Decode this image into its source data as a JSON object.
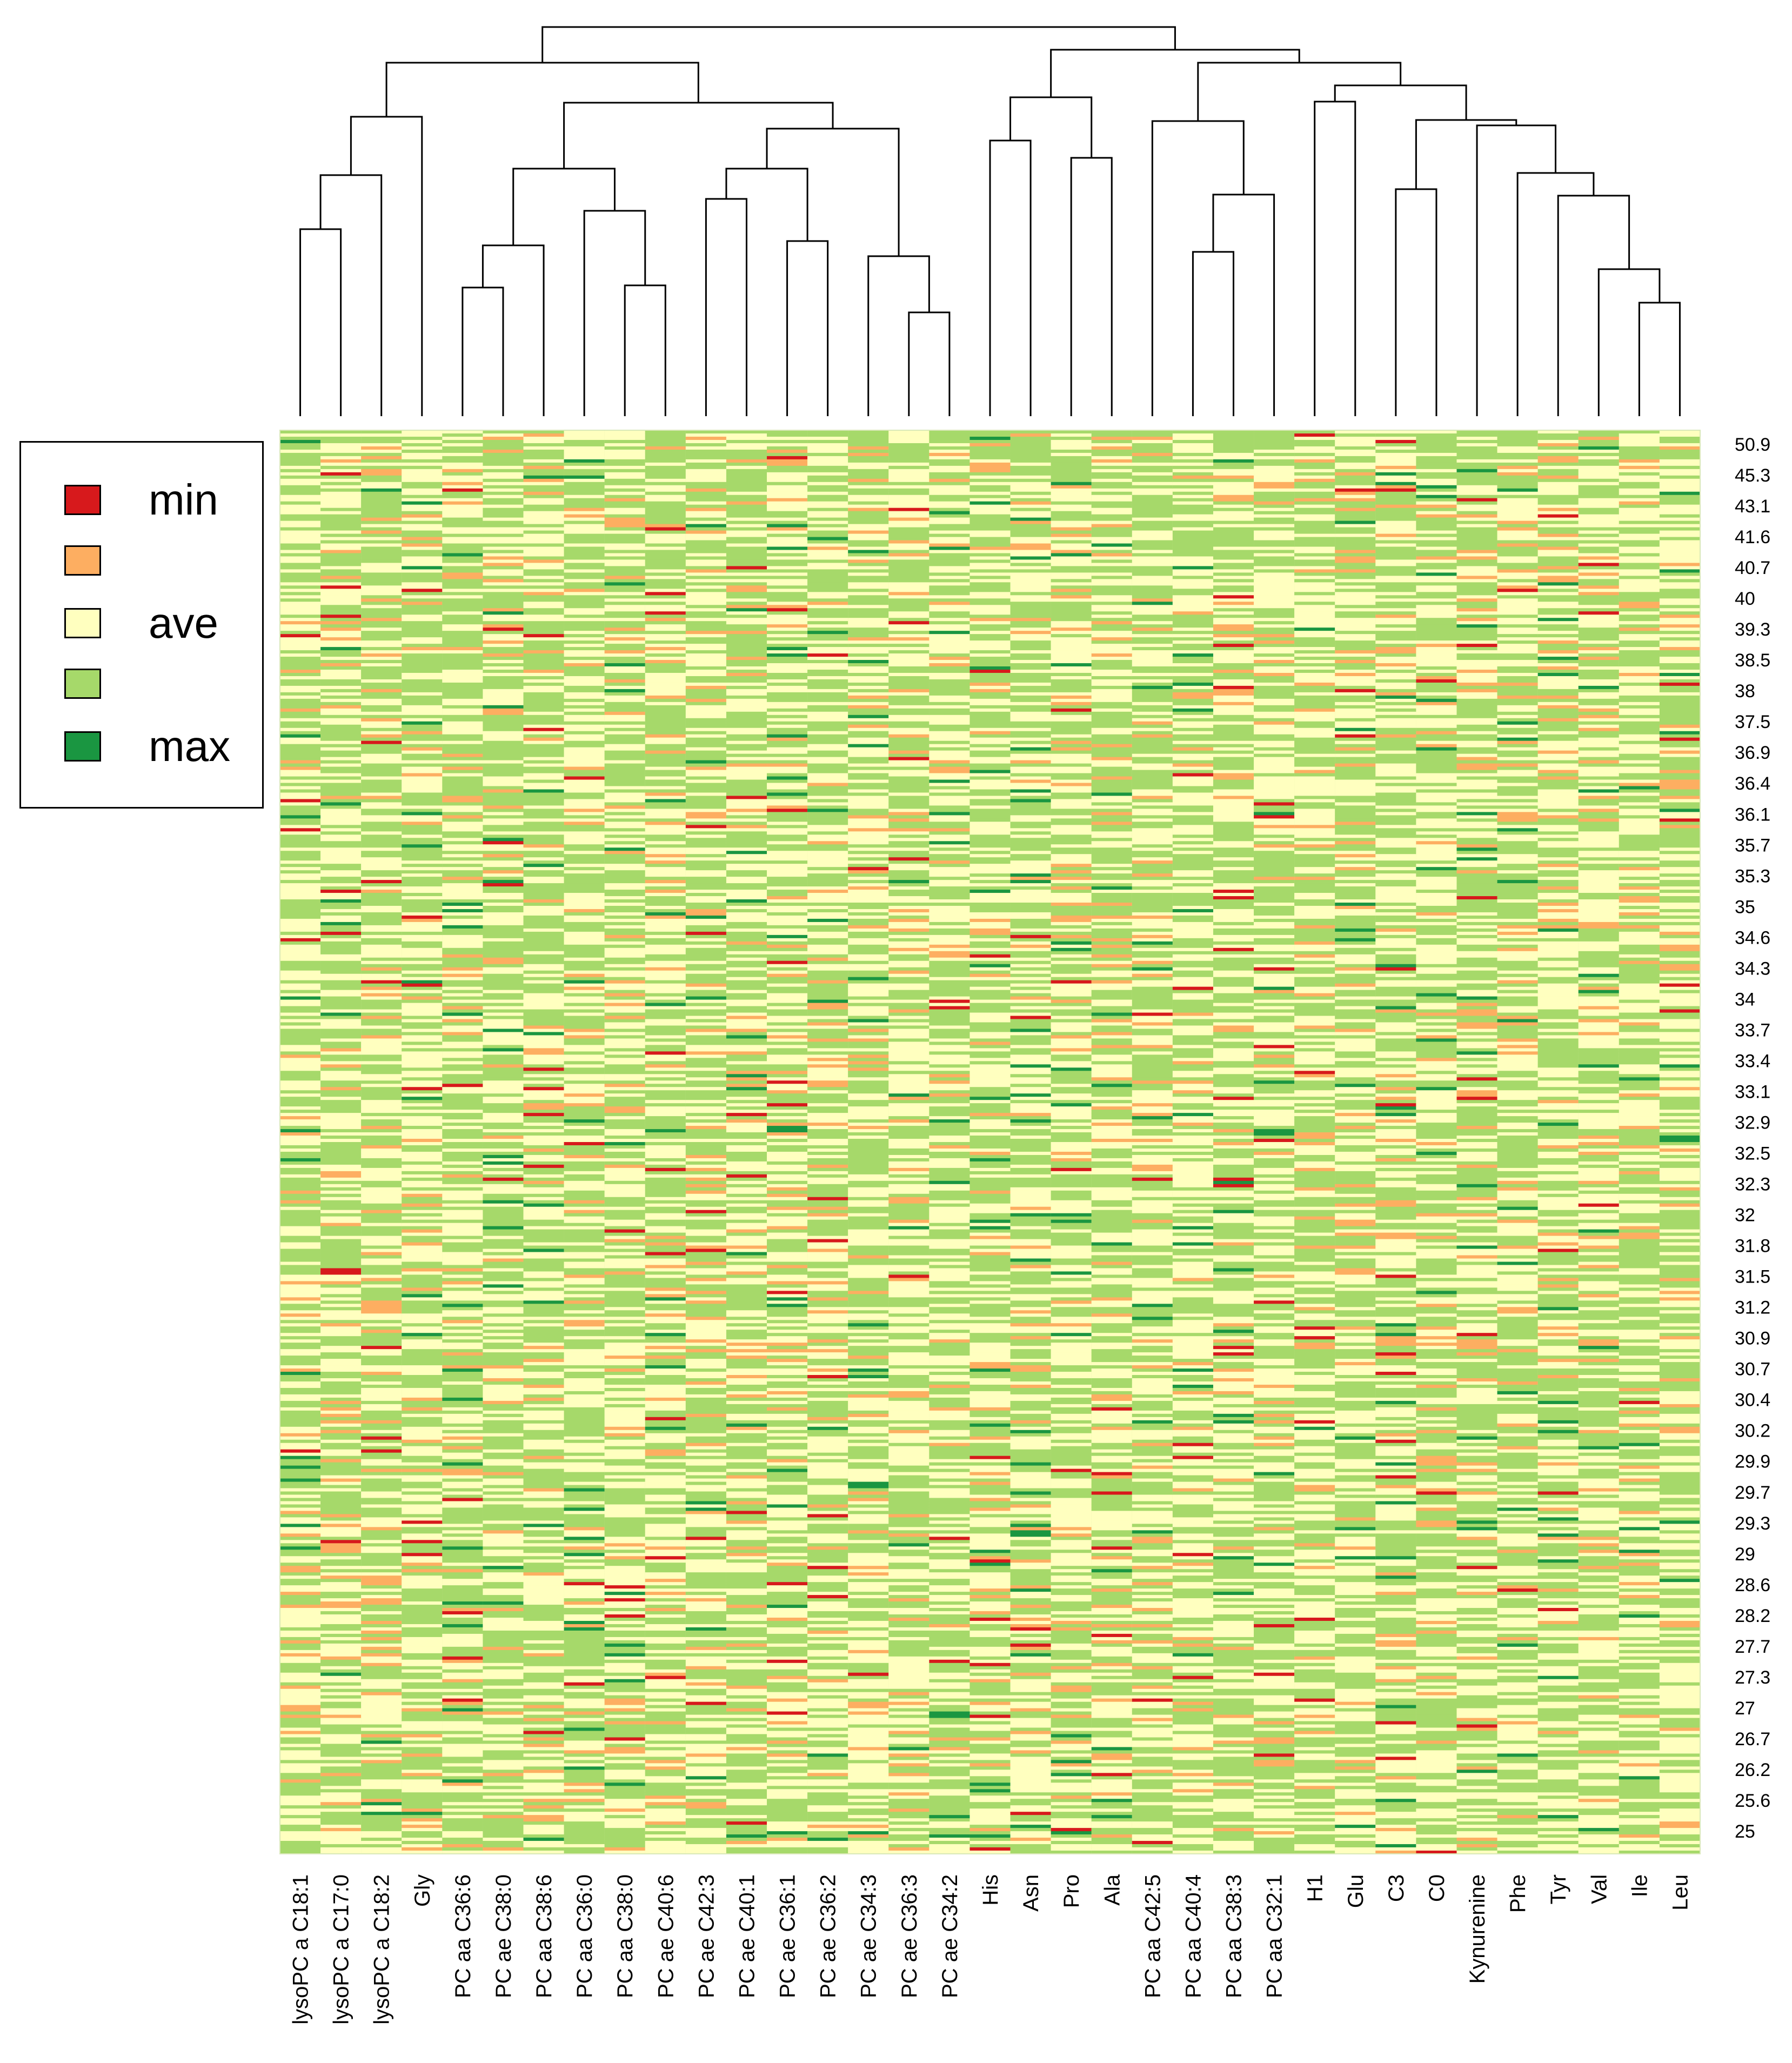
{
  "chart_data": {
    "type": "heatmap",
    "title": "",
    "columns": [
      "lysoPC a C18:1",
      "lysoPC a C17:0",
      "lysoPC a C18:2",
      "Gly",
      "PC aa C36:6",
      "PC ae C38:0",
      "PC aa C38:6",
      "PC aa C36:0",
      "PC aa C38:0",
      "PC ae C40:6",
      "PC ae C42:3",
      "PC ae C40:1",
      "PC ae C36:1",
      "PC ae C36:2",
      "PC ae C34:3",
      "PC ae C36:3",
      "PC ae C34:2",
      "His",
      "Asn",
      "Pro",
      "Ala",
      "PC aa C42:5",
      "PC aa C40:4",
      "PC aa C38:3",
      "PC aa C32:1",
      "H1",
      "Glu",
      "C3",
      "C0",
      "Kynurenine",
      "Phe",
      "Tyr",
      "Val",
      "Ile",
      "Leu"
    ],
    "row_labels": [
      "50.9",
      "45.3",
      "43.1",
      "41.6",
      "40.7",
      "40",
      "39.3",
      "38.5",
      "38",
      "37.5",
      "36.9",
      "36.4",
      "36.1",
      "35.7",
      "35.3",
      "35",
      "34.6",
      "34.3",
      "34",
      "33.7",
      "33.4",
      "33.1",
      "32.9",
      "32.5",
      "32.3",
      "32",
      "31.8",
      "31.5",
      "31.2",
      "30.9",
      "30.7",
      "30.4",
      "30.2",
      "29.9",
      "29.7",
      "29.3",
      "29",
      "28.6",
      "28.2",
      "27.7",
      "27.3",
      "27",
      "26.7",
      "26.2",
      "25.6",
      "25"
    ],
    "color_scale": [
      "#d7191c",
      "#fdae61",
      "#ffffbf",
      "#a6d96a",
      "#1a9641"
    ],
    "dendrogram": {
      "leaf_order": [
        "lysoPC a C18:1",
        "lysoPC a C17:0",
        "lysoPC a C18:2",
        "Gly",
        "PC aa C36:6",
        "PC ae C38:0",
        "PC aa C38:6",
        "PC aa C36:0",
        "PC aa C38:0",
        "PC ae C40:6",
        "PC ae C42:3",
        "PC ae C40:1",
        "PC ae C36:1",
        "PC ae C36:2",
        "PC ae C34:3",
        "PC ae C36:3",
        "PC ae C34:2",
        "His",
        "Asn",
        "Pro",
        "Ala",
        "PC aa C42:5",
        "PC aa C40:4",
        "PC aa C38:3",
        "PC aa C32:1",
        "H1",
        "Glu",
        "C3",
        "C0",
        "Kynurenine",
        "Phe",
        "Tyr",
        "Val",
        "Ile",
        "Leu"
      ]
    }
  },
  "legend": {
    "items": [
      {
        "label": "min",
        "color": "#d7191c"
      },
      {
        "label": "",
        "color": "#fdae61"
      },
      {
        "label": "ave",
        "color": "#ffffbf"
      },
      {
        "label": "",
        "color": "#a6d96a"
      },
      {
        "label": "max",
        "color": "#1a9641"
      }
    ]
  }
}
